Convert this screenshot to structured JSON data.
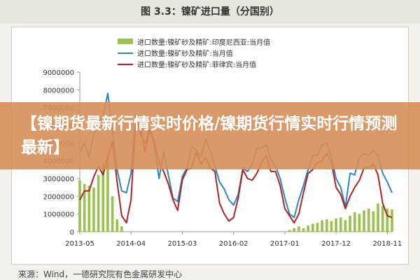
{
  "figure": {
    "title": "图 3.3：镍矿进口量（分国别）",
    "source": "来源：Wind，一德研究院有色金属研发中心"
  },
  "banner": {
    "text": "【镍期货最新行情实时价格/镍期货行情实时行情预测最新】"
  },
  "chart_data": {
    "type": "bar+line",
    "title": "",
    "xlabel": "",
    "ylabel": "",
    "ylim": [
      0,
      9000000
    ],
    "yticks": [
      "0",
      "1000000",
      "2000000",
      "3000000",
      "4000000",
      "5000000",
      "6000000",
      "7000000",
      "8000000",
      "9000000"
    ],
    "xticks": [
      "2013-05",
      "2014-04",
      "2015-03",
      "2016-02",
      "2017-01",
      "2017-12",
      "2018-11"
    ],
    "grid": false,
    "legend_placement": "top",
    "x": [
      "2013-05",
      "2013-06",
      "2013-07",
      "2013-08",
      "2013-09",
      "2013-10",
      "2013-11",
      "2013-12",
      "2014-01",
      "2014-02",
      "2014-03",
      "2014-04",
      "2014-05",
      "2014-06",
      "2014-07",
      "2014-08",
      "2014-09",
      "2014-10",
      "2014-11",
      "2014-12",
      "2015-01",
      "2015-02",
      "2015-03",
      "2015-04",
      "2015-05",
      "2015-06",
      "2015-07",
      "2015-08",
      "2015-09",
      "2015-10",
      "2015-11",
      "2015-12",
      "2016-01",
      "2016-02",
      "2016-03",
      "2016-04",
      "2016-05",
      "2016-06",
      "2016-07",
      "2016-08",
      "2016-09",
      "2016-10",
      "2016-11",
      "2016-12",
      "2017-01",
      "2017-02",
      "2017-03",
      "2017-04",
      "2017-05",
      "2017-06",
      "2017-07",
      "2017-08",
      "2017-09",
      "2017-10",
      "2017-11",
      "2017-12",
      "2018-01",
      "2018-02",
      "2018-03",
      "2018-04",
      "2018-05",
      "2018-06",
      "2018-07",
      "2018-08",
      "2018-09",
      "2018-10",
      "2018-11",
      "2018-12"
    ],
    "series": [
      {
        "name": "进口数量:镍矿砂及精矿:印度尼西亚:当月值",
        "type": "bar",
        "color": "#9bc24f",
        "values": [
          2900000,
          2700000,
          2600000,
          2500000,
          3200000,
          3900000,
          4400000,
          2000000,
          700000,
          300000,
          0,
          0,
          0,
          0,
          0,
          0,
          0,
          0,
          0,
          0,
          0,
          0,
          0,
          0,
          0,
          0,
          0,
          0,
          0,
          0,
          0,
          0,
          0,
          0,
          0,
          0,
          0,
          0,
          0,
          0,
          0,
          0,
          0,
          0,
          0,
          100000,
          200000,
          300000,
          200000,
          350000,
          450000,
          500000,
          650000,
          700000,
          600000,
          750000,
          800000,
          650000,
          900000,
          1100000,
          1000000,
          1200000,
          1300000,
          1150000,
          1600000,
          1450000,
          1300000,
          1250000
        ]
      },
      {
        "name": "进口数量:镍矿砂及精矿:当月值",
        "type": "line",
        "color": "#2e86c1",
        "values": [
          4500000,
          5000000,
          4200000,
          5500000,
          6000000,
          6500000,
          7800000,
          5800000,
          3500000,
          2300000,
          2200000,
          3300000,
          6600000,
          5500000,
          5000000,
          5800000,
          4800000,
          3000000,
          4500000,
          3200000,
          1900000,
          1700000,
          3100000,
          3600000,
          4800000,
          4600000,
          4200000,
          5200000,
          4600000,
          3700000,
          2800000,
          2400000,
          1800000,
          1500000,
          2100000,
          3600000,
          3400000,
          3800000,
          4700000,
          4700000,
          4900000,
          4100000,
          3700000,
          3000000,
          1900000,
          1000000,
          800000,
          1800000,
          2600000,
          3500000,
          4300000,
          4300000,
          4900000,
          5000000,
          4200000,
          3000000,
          2500000,
          1400000,
          3300000,
          3200000,
          4200000,
          4400000,
          4300000,
          4600000,
          4300000,
          3300000,
          2800000,
          2200000
        ]
      },
      {
        "name": "进口数量:镍矿砂及精矿:菲律宾:当月值",
        "type": "line",
        "color": "#b22222",
        "values": [
          1800000,
          2300000,
          2300000,
          3100000,
          3700000,
          3200000,
          4200000,
          5100000,
          2800000,
          900000,
          500000,
          1800000,
          6300000,
          5900000,
          4500000,
          5800000,
          5100000,
          3900000,
          3400000,
          2700000,
          1800000,
          1200000,
          2900000,
          3500000,
          3600000,
          4500000,
          3800000,
          4200000,
          3600000,
          3400000,
          1600000,
          1000000,
          600000,
          800000,
          1900000,
          3500000,
          3000000,
          2900000,
          3300000,
          3900000,
          4300000,
          3400000,
          3400000,
          2600000,
          1300000,
          900000,
          500000,
          1000000,
          2200000,
          3300000,
          3500000,
          3900000,
          4000000,
          4400000,
          3900000,
          2500000,
          2100000,
          1300000,
          2000000,
          2500000,
          2900000,
          3600000,
          3600000,
          3800000,
          3200000,
          1600000,
          900000,
          800000
        ]
      }
    ]
  }
}
